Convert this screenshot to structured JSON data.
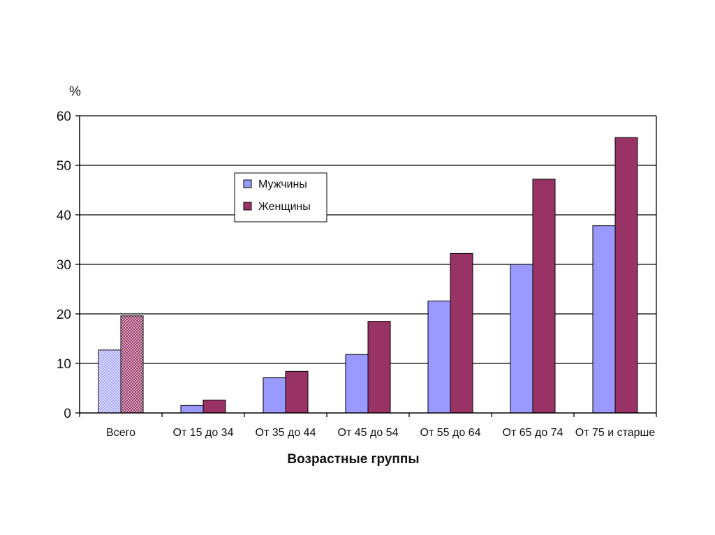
{
  "chart_data": {
    "type": "bar",
    "title": "",
    "ylabel": "%",
    "xlabel": "Возрастные группы",
    "ylim": [
      0,
      60
    ],
    "yticks": [
      0,
      10,
      20,
      30,
      40,
      50,
      60
    ],
    "grid": true,
    "legend_position": "top-center",
    "categories": [
      "Всего",
      "От 15 до 34",
      "От 35 до 44",
      "От 45 до 54",
      "От 55 до 64",
      "От 65 до 74",
      "От 75 и старше"
    ],
    "series": [
      {
        "name": "Мужчины",
        "color": "#9999ff",
        "values": [
          12.7,
          1.5,
          7.1,
          11.8,
          22.6,
          30.0,
          37.8
        ]
      },
      {
        "name": "Женщины",
        "color": "#993366",
        "values": [
          19.6,
          2.6,
          8.4,
          18.5,
          32.2,
          47.2,
          55.6
        ]
      }
    ],
    "hatched_category": "Всего"
  }
}
